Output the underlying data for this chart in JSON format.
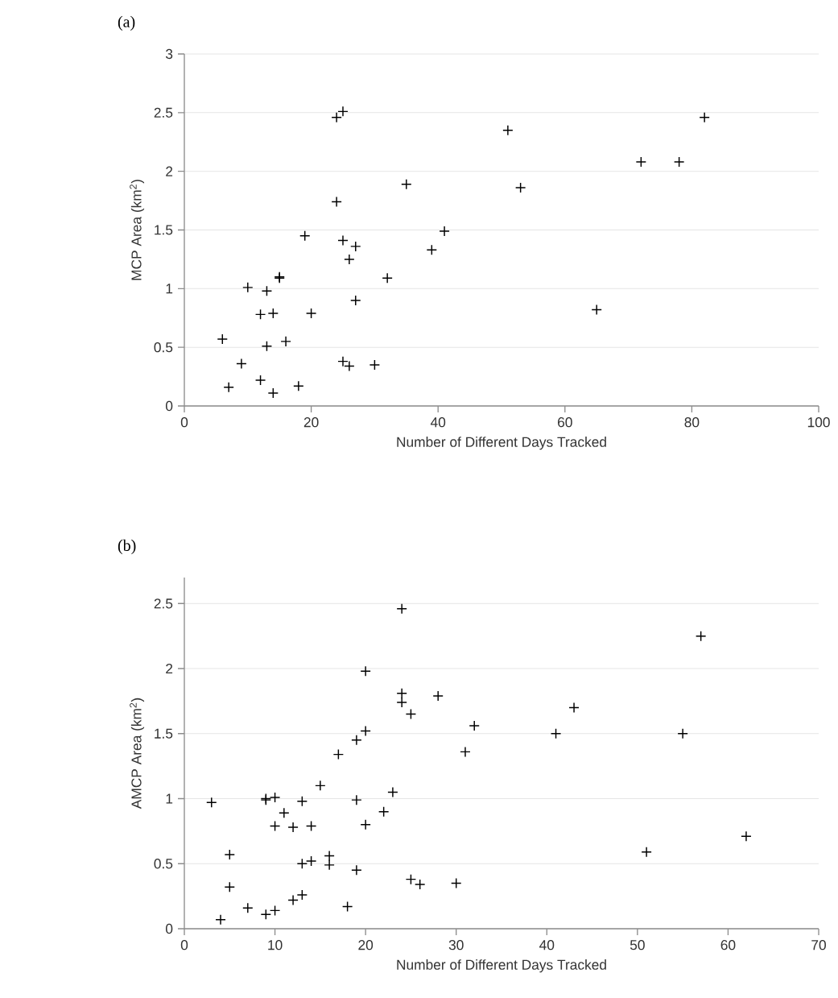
{
  "chart_data": [
    {
      "type": "scatter",
      "title": "(a)",
      "xlabel": "Number of Different Days Tracked",
      "ylabel": "MCP Area (km$^{2}$)",
      "xlim": [
        0,
        100
      ],
      "ylim": [
        0,
        3
      ],
      "xticks": [
        0,
        20,
        40,
        60,
        80,
        100
      ],
      "yticks": [
        0,
        0.5,
        1,
        1.5,
        2,
        2.5,
        3
      ],
      "grid": "y",
      "marker": "cross",
      "series": [
        {
          "color": "#000000",
          "x": [
            24,
            25,
            51,
            82,
            72,
            78,
            35,
            53,
            24,
            19,
            25,
            27,
            41,
            39,
            26,
            15,
            15,
            32,
            10,
            13,
            65,
            27,
            12,
            14,
            20,
            6,
            16,
            13,
            9,
            25,
            26,
            30,
            12,
            7,
            14,
            18
          ],
          "values": [
            2.46,
            2.51,
            2.35,
            2.46,
            2.08,
            2.08,
            1.89,
            1.86,
            1.74,
            1.45,
            1.41,
            1.36,
            1.49,
            1.33,
            1.25,
            1.09,
            1.1,
            1.09,
            1.01,
            0.98,
            0.82,
            0.9,
            0.78,
            0.79,
            0.79,
            0.57,
            0.55,
            0.51,
            0.36,
            0.38,
            0.34,
            0.35,
            0.22,
            0.16,
            0.11,
            0.17
          ]
        }
      ]
    },
    {
      "type": "scatter",
      "title": "(b)",
      "xlabel": "Number of Different Days Tracked",
      "ylabel": "AMCP Area (km$^{2}$)",
      "xlim": [
        0,
        70
      ],
      "ylim": [
        0,
        2.7
      ],
      "xticks": [
        0,
        10,
        20,
        30,
        40,
        50,
        60,
        70
      ],
      "yticks": [
        0,
        0.5,
        1,
        1.5,
        2,
        2.5
      ],
      "grid": "y",
      "marker": "cross",
      "series": [
        {
          "color": "#000000",
          "x": [
            3,
            5,
            5,
            4,
            7,
            9,
            9,
            10,
            9,
            10,
            10,
            11,
            12,
            12,
            13,
            13,
            13,
            14,
            14,
            15,
            16,
            16,
            17,
            18,
            19,
            19,
            19,
            20,
            20,
            20,
            22,
            23,
            24,
            24,
            24,
            25,
            25,
            26,
            28,
            30,
            31,
            32,
            41,
            43,
            51,
            55,
            57,
            62
          ],
          "values": [
            0.97,
            0.57,
            0.32,
            0.07,
            0.16,
            0.99,
            1.0,
            1.01,
            0.11,
            0.14,
            0.79,
            0.89,
            0.78,
            0.22,
            0.98,
            0.5,
            0.26,
            0.79,
            0.52,
            1.1,
            0.56,
            0.49,
            1.34,
            0.17,
            1.45,
            0.99,
            0.45,
            1.98,
            1.52,
            0.8,
            0.9,
            1.05,
            2.46,
            1.81,
            1.74,
            1.65,
            0.38,
            0.34,
            1.79,
            0.35,
            1.36,
            1.56,
            1.5,
            1.7,
            0.59,
            1.5,
            2.25,
            0.71
          ]
        }
      ]
    }
  ]
}
